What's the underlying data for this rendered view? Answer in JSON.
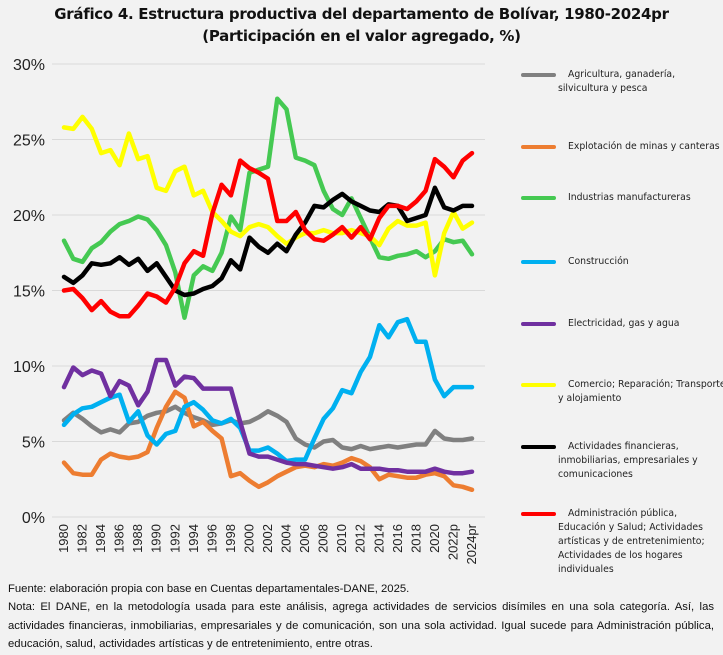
{
  "title_line1": "Gráfico 4. Estructura productiva del departamento de Bolívar, 1980-2024pr",
  "title_line2": "(Participación en el valor agregado, %)",
  "footer": {
    "source": "Fuente: elaboración propia con base en Cuentas departamentales-DANE, 2025.",
    "note": "Nota: El DANE, en la metodología usada para este análisis, agrega actividades de servicios disímiles en una sola categoría. Así, las actividades financieras, inmobiliarias, empresariales y de comunicación, son una sola actividad. Igual sucede para Administración pública, educación, salud, actividades artísticas y de entretenimiento, entre otras."
  },
  "chart_data": {
    "type": "line",
    "title": "Gráfico 4. Estructura productiva del departamento de Bolívar, 1980-2024pr (Participación en el valor agregado, %)",
    "xlabel": "",
    "ylabel": "",
    "ylim": [
      0,
      30
    ],
    "yticks": [
      "0%",
      "5%",
      "10%",
      "15%",
      "20%",
      "25%",
      "30%"
    ],
    "ytick_values": [
      0,
      5,
      10,
      15,
      20,
      25,
      30
    ],
    "grid": true,
    "legend_position": "right",
    "x": [
      "1980",
      "1981",
      "1982",
      "1983",
      "1984",
      "1985",
      "1986",
      "1987",
      "1988",
      "1989",
      "1990",
      "1991",
      "1992",
      "1993",
      "1994",
      "1995",
      "1996",
      "1997",
      "1998",
      "1999",
      "2000",
      "2001",
      "2002",
      "2003",
      "2004",
      "2005",
      "2006",
      "2007",
      "2008",
      "2009",
      "2010",
      "2011",
      "2012",
      "2013",
      "2014",
      "2015",
      "2016",
      "2017",
      "2018",
      "2019",
      "2020",
      "2021",
      "2022p",
      "2023",
      "2024pr"
    ],
    "xtick_labels": [
      "1980",
      "1982",
      "1984",
      "1986",
      "1988",
      "1990",
      "1992",
      "1994",
      "1996",
      "1998",
      "2000",
      "2002",
      "2004",
      "2006",
      "2008",
      "2010",
      "2012",
      "2014",
      "2016",
      "2018",
      "2020",
      "2022p",
      "2024pr"
    ],
    "series": [
      {
        "name": "Agricultura, ganadería, silvicultura y pesca",
        "color": "#808080",
        "values": [
          6.4,
          6.9,
          6.5,
          6.0,
          5.6,
          5.8,
          5.6,
          6.2,
          6.3,
          6.7,
          6.9,
          7.0,
          7.3,
          6.9,
          6.6,
          6.4,
          6.1,
          6.2,
          6.4,
          6.2,
          6.3,
          6.6,
          7.0,
          6.7,
          6.3,
          5.2,
          4.8,
          4.6,
          5.0,
          5.1,
          4.6,
          4.5,
          4.7,
          4.5,
          4.6,
          4.7,
          4.6,
          4.7,
          4.8,
          4.8,
          5.7,
          5.2,
          5.1,
          5.1,
          5.2
        ]
      },
      {
        "name": "Explotación de minas y canteras",
        "color": "#ed7d31",
        "values": [
          3.6,
          2.9,
          2.8,
          2.8,
          3.8,
          4.2,
          4.0,
          3.9,
          4.0,
          4.3,
          5.9,
          7.3,
          8.3,
          7.9,
          6.0,
          6.3,
          5.7,
          5.2,
          2.7,
          2.9,
          2.4,
          2.0,
          2.3,
          2.7,
          3.0,
          3.3,
          3.4,
          3.3,
          3.5,
          3.4,
          3.6,
          3.9,
          3.7,
          3.3,
          2.5,
          2.8,
          2.7,
          2.6,
          2.6,
          2.8,
          2.9,
          2.7,
          2.1,
          2.0,
          1.8
        ]
      },
      {
        "name": "Industrias manufactureras",
        "color": "#45c952",
        "values": [
          18.3,
          17.1,
          16.9,
          17.8,
          18.2,
          18.9,
          19.4,
          19.6,
          19.9,
          19.7,
          19.0,
          18.0,
          16.2,
          13.2,
          16.0,
          16.6,
          16.3,
          17.5,
          19.9,
          19.0,
          22.8,
          23.0,
          23.2,
          27.7,
          27.0,
          23.8,
          23.6,
          23.3,
          21.6,
          20.4,
          20.0,
          21.1,
          19.8,
          18.5,
          17.2,
          17.1,
          17.3,
          17.4,
          17.6,
          17.2,
          17.6,
          18.4,
          18.2,
          18.3,
          17.4
        ]
      },
      {
        "name": "Construcción",
        "color": "#00b0f0",
        "values": [
          6.1,
          6.8,
          7.2,
          7.3,
          7.6,
          7.9,
          8.1,
          6.3,
          7.0,
          5.4,
          4.8,
          5.5,
          5.7,
          7.3,
          7.6,
          7.1,
          6.4,
          6.2,
          6.5,
          5.9,
          4.4,
          4.4,
          4.6,
          4.2,
          3.7,
          3.8,
          3.8,
          5.2,
          6.5,
          7.2,
          8.4,
          8.2,
          9.6,
          10.6,
          12.7,
          11.9,
          12.9,
          13.1,
          11.6,
          11.6,
          9.1,
          8.0,
          8.6,
          8.6,
          8.6
        ]
      },
      {
        "name": "Electricidad, gas y agua",
        "color": "#7030a0",
        "values": [
          8.6,
          9.9,
          9.4,
          9.7,
          9.5,
          8.0,
          9.0,
          8.7,
          7.4,
          8.3,
          10.4,
          10.4,
          8.7,
          9.3,
          9.2,
          8.5,
          8.5,
          8.5,
          8.5,
          6.3,
          4.2,
          4.0,
          4.0,
          3.8,
          3.6,
          3.5,
          3.5,
          3.4,
          3.3,
          3.2,
          3.3,
          3.5,
          3.2,
          3.2,
          3.2,
          3.1,
          3.1,
          3.0,
          3.0,
          3.0,
          3.2,
          3.0,
          2.9,
          2.9,
          3.0
        ]
      },
      {
        "name": "Comercio; Reparación; Transporte y alojamiento",
        "color": "#ffff00",
        "values": [
          25.8,
          25.7,
          26.5,
          25.7,
          24.1,
          24.3,
          23.3,
          25.4,
          23.7,
          23.9,
          21.8,
          21.6,
          22.9,
          23.2,
          21.3,
          21.6,
          20.2,
          19.6,
          18.9,
          18.6,
          19.2,
          19.4,
          19.2,
          18.6,
          18.1,
          18.5,
          18.8,
          18.8,
          19.0,
          18.8,
          18.8,
          19.0,
          18.8,
          18.6,
          18.0,
          19.1,
          19.6,
          19.3,
          19.3,
          19.5,
          16.0,
          18.8,
          20.2,
          19.1,
          19.5
        ]
      },
      {
        "name": "Actividades financieras, inmobiliarias, empresariales y comunicaciones",
        "color": "#000000",
        "values": [
          15.9,
          15.5,
          16.0,
          16.8,
          16.7,
          16.8,
          17.2,
          16.7,
          17.1,
          16.3,
          16.8,
          15.9,
          15.0,
          14.7,
          14.8,
          15.1,
          15.3,
          15.8,
          17.0,
          16.4,
          18.5,
          17.9,
          17.5,
          18.1,
          17.6,
          18.7,
          19.5,
          20.6,
          20.5,
          21.0,
          21.4,
          20.9,
          20.6,
          20.3,
          20.2,
          20.7,
          20.6,
          19.6,
          19.8,
          20.0,
          21.8,
          20.5,
          20.3,
          20.6,
          20.6
        ]
      },
      {
        "name": "Administración pública, Educación y Salud; Actividades artísticas y de entretenimiento; Actividades de los hogares individuales",
        "color": "#ff0000",
        "values": [
          15.0,
          15.1,
          14.5,
          13.7,
          14.3,
          13.6,
          13.3,
          13.3,
          14.0,
          14.8,
          14.6,
          14.2,
          15.2,
          16.8,
          17.6,
          17.3,
          20.1,
          22.0,
          21.3,
          23.6,
          23.1,
          22.8,
          22.4,
          19.6,
          19.6,
          20.2,
          19.0,
          18.4,
          18.3,
          18.7,
          19.2,
          18.5,
          19.2,
          18.4,
          19.8,
          20.6,
          20.6,
          20.4,
          20.9,
          21.6,
          23.7,
          23.2,
          22.5,
          23.6,
          24.1
        ]
      }
    ]
  }
}
